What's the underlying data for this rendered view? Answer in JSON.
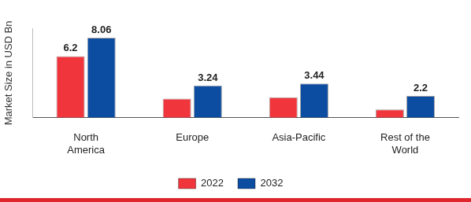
{
  "chart_data": {
    "type": "bar",
    "y_label": "Market Size in USD Bn",
    "categories": [
      "North America",
      "Europe",
      "Asia-Pacific",
      "Rest of the World"
    ],
    "series": [
      {
        "name": "2022",
        "color": "#f0363c",
        "values": [
          6.2,
          1.93,
          2.07,
          0.83
        ],
        "value_labels": [
          "6.2",
          null,
          null,
          null
        ]
      },
      {
        "name": "2032",
        "color": "#0d4da1",
        "values": [
          8.06,
          3.24,
          3.44,
          2.2
        ]
      }
    ],
    "ylim": [
      0,
      9
    ],
    "yticks": [],
    "grid": false,
    "legend": "bottom",
    "data_labels": true,
    "tick_labels": "x"
  }
}
